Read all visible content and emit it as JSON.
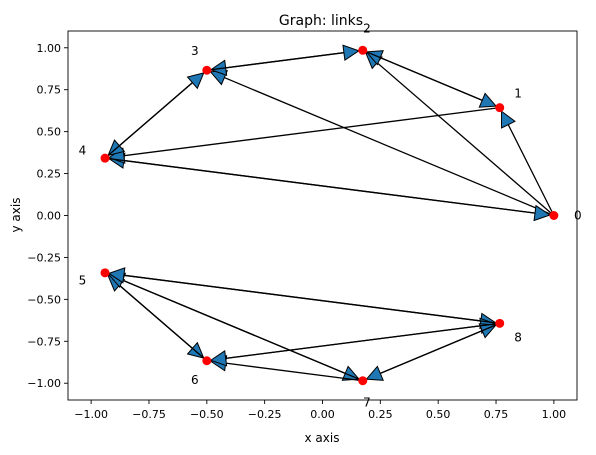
{
  "chart_data": {
    "type": "scatter",
    "title": "Graph: links",
    "xlabel": "x axis",
    "ylabel": "y axis",
    "xlim": [
      -1.1,
      1.1
    ],
    "ylim": [
      -1.1,
      1.1
    ],
    "xticks": [
      -1.0,
      -0.75,
      -0.5,
      -0.25,
      0.0,
      0.25,
      0.5,
      0.75,
      1.0
    ],
    "xtick_labels": [
      "−1.00",
      "−0.75",
      "−0.50",
      "−0.25",
      "0.00",
      "0.25",
      "0.50",
      "0.75",
      "1.00"
    ],
    "yticks": [
      -1.0,
      -0.75,
      -0.5,
      -0.25,
      0.0,
      0.25,
      0.5,
      0.75,
      1.0
    ],
    "ytick_labels": [
      "−1.00",
      "−0.75",
      "−0.50",
      "−0.25",
      "0.00",
      "0.25",
      "0.50",
      "0.75",
      "1.00"
    ],
    "grid": false,
    "node_color": "#ff0000",
    "arrow_fill": "#1f77b4",
    "edge_color": "#000000",
    "nodes": [
      {
        "id": "0",
        "x": 1.0,
        "y": 0.0
      },
      {
        "id": "1",
        "x": 0.766,
        "y": 0.643
      },
      {
        "id": "2",
        "x": 0.174,
        "y": 0.985
      },
      {
        "id": "3",
        "x": -0.5,
        "y": 0.866
      },
      {
        "id": "4",
        "x": -0.94,
        "y": 0.342
      },
      {
        "id": "5",
        "x": -0.94,
        "y": -0.342
      },
      {
        "id": "6",
        "x": -0.5,
        "y": -0.866
      },
      {
        "id": "7",
        "x": 0.174,
        "y": -0.985
      },
      {
        "id": "8",
        "x": 0.766,
        "y": -0.643
      }
    ],
    "edges": [
      {
        "from": "0",
        "to": "1"
      },
      {
        "from": "0",
        "to": "2"
      },
      {
        "from": "0",
        "to": "3"
      },
      {
        "from": "0",
        "to": "4"
      },
      {
        "from": "1",
        "to": "2"
      },
      {
        "from": "1",
        "to": "4"
      },
      {
        "from": "2",
        "to": "1"
      },
      {
        "from": "2",
        "to": "3"
      },
      {
        "from": "3",
        "to": "2"
      },
      {
        "from": "3",
        "to": "4"
      },
      {
        "from": "4",
        "to": "3"
      },
      {
        "from": "4",
        "to": "0"
      },
      {
        "from": "5",
        "to": "6"
      },
      {
        "from": "5",
        "to": "7"
      },
      {
        "from": "5",
        "to": "8"
      },
      {
        "from": "6",
        "to": "5"
      },
      {
        "from": "6",
        "to": "8"
      },
      {
        "from": "7",
        "to": "5"
      },
      {
        "from": "7",
        "to": "6"
      },
      {
        "from": "7",
        "to": "8"
      },
      {
        "from": "8",
        "to": "5"
      },
      {
        "from": "8",
        "to": "6"
      },
      {
        "from": "8",
        "to": "7"
      }
    ]
  }
}
